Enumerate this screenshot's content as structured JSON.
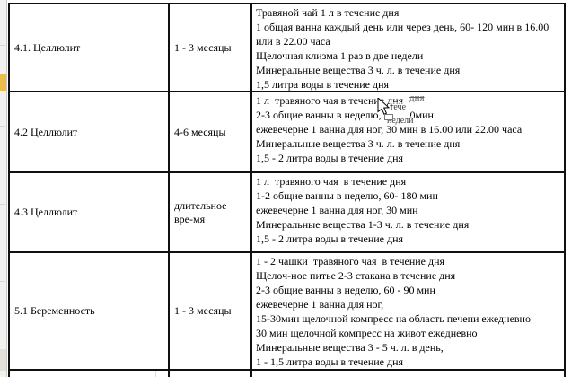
{
  "accent_colors": {
    "border": "#101010",
    "highlight_strip": "#e9bd4b",
    "background": "#ffffff"
  },
  "table": {
    "rows": [
      {
        "condition": "4.1. Целлюлит",
        "duration": "1 - 3 месяцы",
        "treatments": [
          "Травяной чай 1 л в течение дня",
          "1 общая ванна каждый день или через день, 60- 120 мин в 16.00 или в 22.00 часа",
          "Щелочная клизма 1 раз в две недели",
          "Минеральные вещества 3 ч. л. в течение дня",
          "1,5 литра воды в течение дня"
        ]
      },
      {
        "condition": "4.2 Целлюлит",
        "duration": "4-6 месяцы",
        "treatments": [
          "1 л  травяного чая в течение дня",
          {
            "segments": [
              "2-3 общие ванны в неделю,",
              "0мин"
            ]
          },
          "ежевечерне 1 ванна для ног, 30 мин в 16.00 или 22.00 часа",
          "Минеральные вещества 3 ч. л. в течение дня",
          "1,5 - 2 литра воды в течение дня"
        ]
      },
      {
        "condition": "4.3 Целлюлит",
        "duration": "длительное вре-мя",
        "treatments": [
          "1 л  травяного чая  в течение дня",
          "1-2 общие ванны в неделю, 60- 180 мин",
          "ежевечерне 1 ванна для ног, 30 мин",
          "Минеральные вещества 1-3 ч. л. в течение дня",
          "1,5 - 2 литра воды в течение дня"
        ]
      },
      {
        "condition": "5.1 Беременность",
        "duration": "1 - 3 месяцы",
        "treatments": [
          "1 - 2 чашки  травяного чая  в течение дня",
          "Щелоч-ное питье 2-3 стакана в течение дня",
          "2-3 общие ванны в неделю, 60 - 90 мин",
          "ежевечерне 1 ванна для ног,",
          "15-30мин щелочной компресс на область печени ежедневно",
          "30 мин щелочной компресс на живот ежедневно",
          "Минеральные вещества 3 - 5 ч. л. в день,",
          "1 - 1,5 литра воды в течение дня"
        ]
      }
    ]
  },
  "drag_ghost": {
    "fragment_top": "дня",
    "fragment_mid": "тече",
    "fragment_bottom": "недели"
  }
}
